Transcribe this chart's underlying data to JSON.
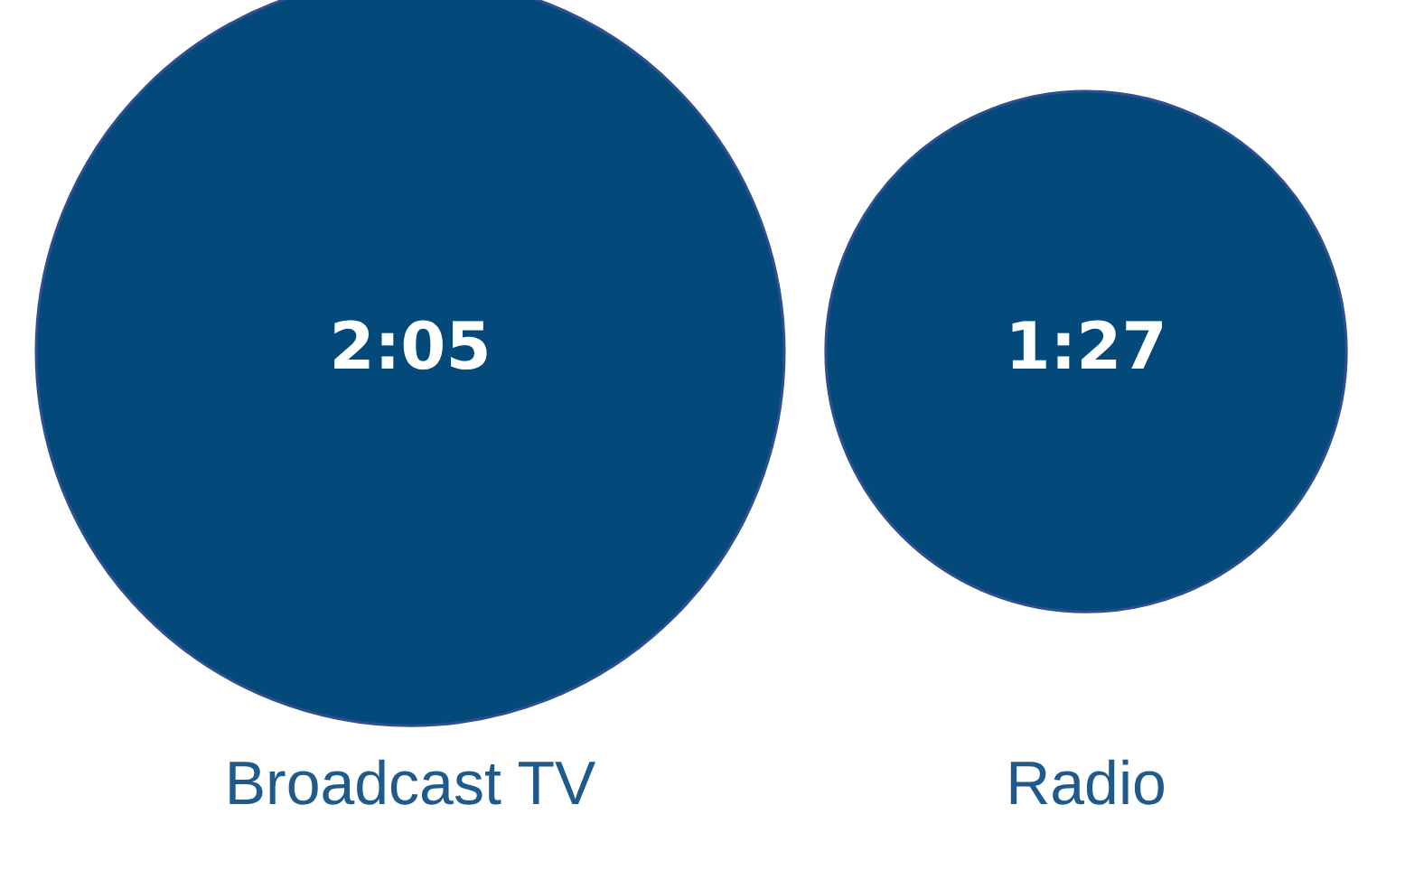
{
  "chart_data": {
    "type": "other",
    "categories": [
      "Broadcast TV",
      "Radio"
    ],
    "values": [
      2.0833,
      1.45
    ],
    "value_labels": [
      "2:05",
      "1:27"
    ],
    "color": "#03497a"
  }
}
